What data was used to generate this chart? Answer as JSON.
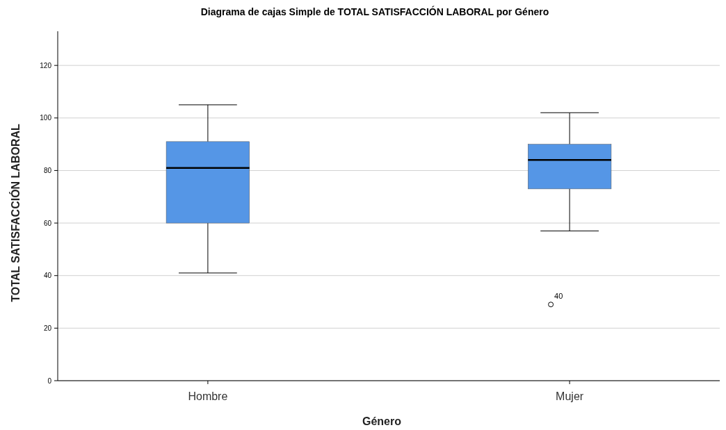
{
  "chart_data": {
    "type": "box",
    "title": "Diagrama de cajas Simple de TOTAL SATISFACCIÓN LABORAL por Género",
    "xlabel": "Género",
    "ylabel": "TOTAL SATISFACCIÓN LABORAL",
    "categories": [
      "Hombre",
      "Mujer"
    ],
    "color": "#5596e6",
    "boxes": [
      {
        "low": 41,
        "q1": 60,
        "median": 81,
        "q3": 91,
        "high": 105
      },
      {
        "low": 57,
        "q1": 73,
        "median": 84,
        "q3": 90,
        "high": 102,
        "outliers": [
          29
        ]
      }
    ],
    "annotations": [
      "40"
    ],
    "ylim": [
      0,
      133
    ],
    "yticks": [
      0,
      20,
      40,
      60,
      80,
      100,
      120
    ],
    "grid": "y"
  }
}
